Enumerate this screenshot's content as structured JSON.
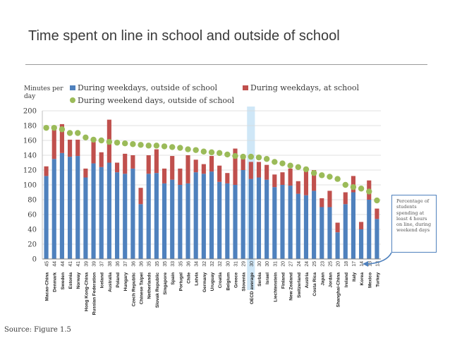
{
  "slide": {
    "title": "Time spent on line in school and outside of school",
    "source": "Source: Figure 1.5",
    "callout_text": "Percentage of students spending at least 4 hours on line, during weekend days"
  },
  "colors": {
    "outside_school": "#4f81bd",
    "at_school": "#c0504d",
    "weekend_marker": "#9bbb59",
    "highlight": "#cfe7f7",
    "gridline": "#d9d9d9",
    "callout_border": "#4f81bd"
  },
  "chart_data": {
    "type": "bar",
    "stacked": true,
    "ylabel": "Minutes per day",
    "ylim": [
      0,
      200
    ],
    "yticks": [
      0,
      20,
      40,
      60,
      80,
      100,
      120,
      140,
      160,
      180,
      200
    ],
    "grid": true,
    "legend_position": "top",
    "highlighted_category": "OECD average",
    "categories": [
      "Macao-China",
      "Denmark",
      "Sweden",
      "Estonia",
      "Norway",
      "Hong Kong-China",
      "Russian Federation",
      "Iceland",
      "Australia",
      "Poland",
      "Hungary",
      "Czech Republic",
      "Chinese Taipei",
      "Netherlands",
      "Slovak Republic",
      "Singapore",
      "Spain",
      "Portugal",
      "Chile",
      "Latvia",
      "Germany",
      "Uruguay",
      "Croatia",
      "Belgium",
      "Greece",
      "Slovenia",
      "OECD average",
      "Serbia",
      "Israel",
      "Liechtenstein",
      "Finland",
      "New Zealand",
      "Switzerland",
      "Austria",
      "Costa Rica",
      "Japan",
      "Jordan",
      "Shanghai-China",
      "Ireland",
      "Italy",
      "Korea",
      "Mexico",
      "Turkey"
    ],
    "percent_labels": [
      45,
      44,
      44,
      41,
      41,
      39,
      39,
      37,
      38,
      36,
      37,
      36,
      36,
      35,
      35,
      35,
      33,
      35,
      36,
      34,
      32,
      32,
      32,
      30,
      31,
      29,
      30,
      30,
      30,
      31,
      20,
      27,
      24,
      24,
      25,
      23,
      25,
      20,
      18,
      17,
      14,
      13,
      13
    ],
    "series": [
      {
        "name": "During weekdays, outside of school",
        "values": [
          112,
          135,
          143,
          138,
          139,
          110,
          129,
          124,
          130,
          117,
          115,
          122,
          74,
          115,
          116,
          102,
          107,
          100,
          102,
          117,
          115,
          118,
          104,
          102,
          100,
          120,
          108,
          110,
          107,
          97,
          100,
          99,
          88,
          86,
          92,
          70,
          70,
          36,
          74,
          90,
          40,
          80,
          54
        ]
      },
      {
        "name": "During weekdays, at school",
        "values": [
          13,
          45,
          39,
          23,
          22,
          12,
          29,
          20,
          58,
          13,
          27,
          18,
          22,
          25,
          32,
          20,
          32,
          22,
          38,
          17,
          13,
          21,
          22,
          14,
          49,
          20,
          23,
          21,
          20,
          17,
          17,
          23,
          17,
          38,
          28,
          12,
          22,
          13,
          16,
          22,
          10,
          26,
          14
        ]
      },
      {
        "name": "During weekend days, outside of school",
        "type": "marker",
        "values": [
          177,
          177,
          175,
          170,
          170,
          164,
          161,
          160,
          158,
          157,
          156,
          155,
          154,
          153,
          153,
          152,
          151,
          150,
          148,
          147,
          145,
          144,
          143,
          141,
          139,
          138,
          138,
          137,
          135,
          131,
          129,
          126,
          124,
          121,
          116,
          113,
          111,
          108,
          100,
          97,
          95,
          91,
          79
        ]
      }
    ]
  }
}
